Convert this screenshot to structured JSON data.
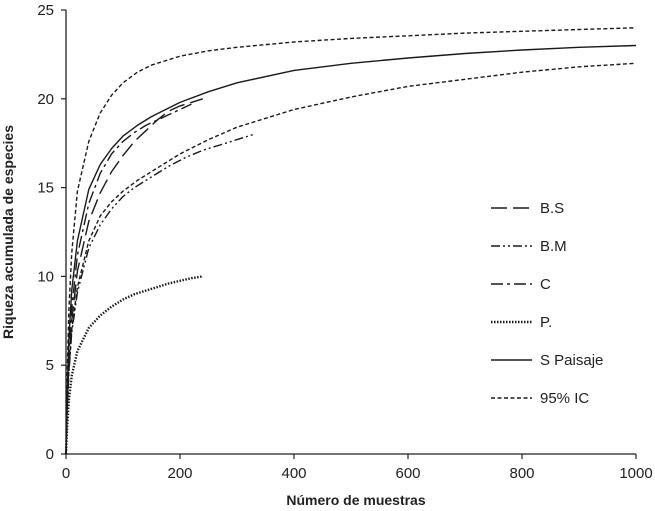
{
  "chart_data": {
    "type": "line",
    "title": "",
    "xlabel": "Número de muestras",
    "ylabel": "Riqueza acumulada de especies",
    "xlim": [
      0,
      1000
    ],
    "ylim": [
      0,
      25
    ],
    "xticks": [
      "0",
      "200",
      "400",
      "600",
      "800",
      "1000"
    ],
    "yticks": [
      "0",
      "5",
      "10",
      "15",
      "20",
      "25"
    ],
    "grid": false,
    "legend_position": "right",
    "series": [
      {
        "name": "B.S",
        "dash": "long-dash",
        "x": [
          0,
          2,
          5,
          10,
          20,
          40,
          60,
          80,
          100,
          120,
          140,
          160,
          180,
          200,
          220,
          240
        ],
        "y": [
          0,
          2.5,
          4.9,
          7.5,
          10.3,
          13.1,
          14.7,
          15.9,
          16.8,
          17.6,
          18.2,
          18.8,
          19.3,
          19.6,
          19.8,
          20
        ]
      },
      {
        "name": "B.M",
        "dash": "dash-dot-dot",
        "x": [
          0,
          2,
          5,
          10,
          20,
          40,
          60,
          80,
          100,
          120,
          150,
          180,
          210,
          240,
          270,
          300,
          330
        ],
        "y": [
          0,
          2.5,
          4.5,
          6.8,
          9.1,
          11.6,
          12.9,
          13.8,
          14.5,
          15.0,
          15.6,
          16.2,
          16.7,
          17.1,
          17.4,
          17.7,
          18
        ]
      },
      {
        "name": "C",
        "dash": "dash-dot",
        "x": [
          0,
          2,
          5,
          10,
          20,
          40,
          60,
          80,
          100,
          120,
          140,
          160,
          180,
          200,
          220
        ],
        "y": [
          0,
          2.8,
          5.5,
          8.2,
          11.2,
          14.1,
          15.8,
          16.9,
          17.6,
          18.1,
          18.5,
          18.8,
          19.1,
          19.4,
          19.7
        ]
      },
      {
        "name": "P.",
        "dash": "dotted",
        "x": [
          0,
          2,
          5,
          10,
          20,
          40,
          60,
          80,
          100,
          120,
          140,
          160,
          180,
          200,
          220,
          240
        ],
        "y": [
          0,
          1.5,
          3.0,
          4.4,
          5.8,
          7.1,
          7.8,
          8.3,
          8.7,
          9.0,
          9.2,
          9.4,
          9.6,
          9.75,
          9.9,
          10
        ]
      },
      {
        "name": "S Paisaje",
        "dash": "solid",
        "x": [
          0,
          2,
          5,
          10,
          20,
          40,
          60,
          80,
          100,
          125,
          150,
          200,
          250,
          300,
          400,
          500,
          600,
          700,
          800,
          900,
          1000
        ],
        "y": [
          0,
          3.3,
          6.4,
          9.2,
          12.0,
          14.9,
          16.3,
          17.2,
          17.9,
          18.5,
          19.0,
          19.8,
          20.4,
          20.9,
          21.6,
          22.0,
          22.3,
          22.55,
          22.75,
          22.9,
          23
        ]
      },
      {
        "name": "95% IC",
        "dash": "short-dash",
        "x": [
          0,
          2,
          5,
          10,
          20,
          40,
          60,
          80,
          100,
          125,
          150,
          200,
          250,
          300,
          400,
          500,
          600,
          700,
          800,
          900,
          1000
        ],
        "y": [
          0,
          4.3,
          8.0,
          11.3,
          14.8,
          17.6,
          19.2,
          20.2,
          20.9,
          21.5,
          21.9,
          22.4,
          22.7,
          22.9,
          23.2,
          23.4,
          23.55,
          23.7,
          23.8,
          23.9,
          24
        ]
      },
      {
        "name": "95% IC",
        "dash": "short-dash",
        "x": [
          0,
          2,
          5,
          10,
          20,
          40,
          60,
          80,
          100,
          125,
          150,
          200,
          250,
          300,
          400,
          500,
          600,
          700,
          800,
          900,
          1000
        ],
        "y": [
          0,
          2.2,
          4.6,
          7.0,
          9.4,
          12.0,
          13.4,
          14.2,
          14.8,
          15.4,
          15.9,
          16.9,
          17.7,
          18.4,
          19.4,
          20.1,
          20.7,
          21.1,
          21.5,
          21.8,
          22
        ]
      }
    ]
  }
}
